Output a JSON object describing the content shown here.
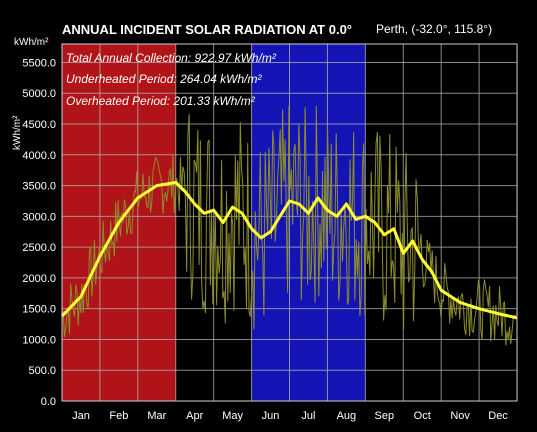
{
  "chart_data": {
    "type": "line",
    "title": "ANNUAL INCIDENT SOLAR RADIATION AT 0.0°",
    "location": "Perth,  (-32.0°, 115.8°)",
    "ylabel_top": "kWh/m²",
    "ylabel_side": "kWh/m²",
    "ylim": [
      0,
      5800
    ],
    "yticks": [
      {
        "value": 0,
        "label": "0.0"
      },
      {
        "value": 500,
        "label": "500.0"
      },
      {
        "value": 1000,
        "label": "1000.0"
      },
      {
        "value": 1500,
        "label": "1500.0"
      },
      {
        "value": 2000,
        "label": "2000.0"
      },
      {
        "value": 2500,
        "label": "2500.0"
      },
      {
        "value": 3000,
        "label": "3000.0"
      },
      {
        "value": 3500,
        "label": "3500.0"
      },
      {
        "value": 4000,
        "label": "4000.0"
      },
      {
        "value": 4500,
        "label": "4500.0"
      },
      {
        "value": 5000,
        "label": "5000.0"
      },
      {
        "value": 5500,
        "label": "5500.0"
      }
    ],
    "months": [
      "Jan",
      "Feb",
      "Mar",
      "Apr",
      "May",
      "Jun",
      "Jul",
      "Aug",
      "Sep",
      "Oct",
      "Nov",
      "Dec"
    ],
    "summary": [
      "Total Annual Collection:  922.97 kWh/m²",
      "Underheated Period:  264.04 kWh/m²",
      "Overheated Period:  201.33 kWh/m²"
    ],
    "periods": [
      {
        "name": "Underheated Period",
        "start_month": 0,
        "end_month": 3,
        "color": "#b01418"
      },
      {
        "name": "Overheated Period",
        "start_month": 5,
        "end_month": 8,
        "color": "#1414b4"
      }
    ],
    "smoothed_series": {
      "color": "#ffff33",
      "x_month": [
        0,
        0.5,
        1,
        1.5,
        2,
        2.5,
        3,
        3.25,
        3.5,
        3.75,
        4,
        4.25,
        4.5,
        4.75,
        5,
        5.25,
        5.5,
        5.75,
        6,
        6.25,
        6.5,
        6.75,
        7,
        7.25,
        7.5,
        7.75,
        8,
        8.25,
        8.5,
        8.75,
        9,
        9.25,
        9.5,
        9.75,
        10,
        10.5,
        11,
        11.5,
        12
      ],
      "values": [
        1380,
        1700,
        2350,
        2900,
        3300,
        3500,
        3550,
        3400,
        3200,
        3050,
        3100,
        2900,
        3150,
        3050,
        2800,
        2650,
        2750,
        3000,
        3250,
        3200,
        3050,
        3300,
        3100,
        3000,
        3200,
        2950,
        3000,
        2900,
        2700,
        2800,
        2400,
        2600,
        2300,
        2100,
        1800,
        1600,
        1500,
        1420,
        1350
      ]
    },
    "daily_series": {
      "color": "#8c8c2c",
      "note_min": 600,
      "note_max": 4800
    },
    "grid": true,
    "colors": {
      "background": "#000000",
      "plot_background": "#000000",
      "grid": "#b4b4b4"
    }
  }
}
